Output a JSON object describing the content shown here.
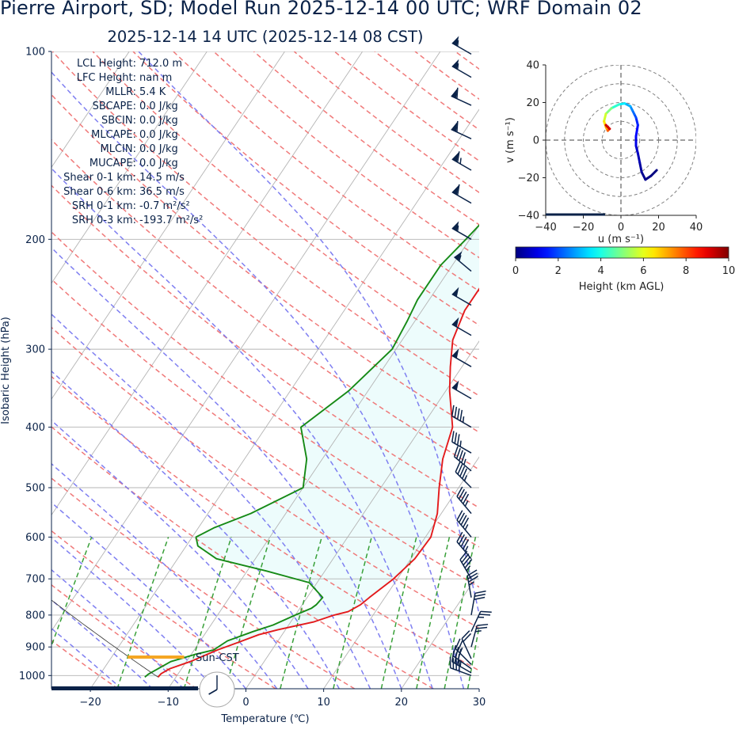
{
  "title": "Pierre Airport, SD; Model Run 2025-12-14 00 UTC; WRF Domain 02",
  "subtitle": "2025-12-14 14 UTC  (2025-12-14 08 CST)",
  "stats": [
    {
      "label": "LCL Height:",
      "value": "712.0 m"
    },
    {
      "label": "LFC Height:",
      "value": "nan m"
    },
    {
      "label": "MLLR:",
      "value": "5.4 K"
    },
    {
      "label": "SBCAPE:",
      "value": "0.0 J/kg"
    },
    {
      "label": "SBCIN:",
      "value": "0.0 J/kg"
    },
    {
      "label": "MLCAPE:",
      "value": "0.0 J/kg"
    },
    {
      "label": "MLCIN:",
      "value": "0.0 J/kg"
    },
    {
      "label": "MUCAPE:",
      "value": "0.0 J/kg"
    },
    {
      "label": "Shear 0-1 km:",
      "value": "14.5 m/s"
    },
    {
      "label": "Shear 0-6 km:",
      "value": "36.5 m/s"
    },
    {
      "label": "SRH 0-1 km:",
      "value": "-0.7 m²/s²"
    },
    {
      "label": "SRH 0-3 km:",
      "value": "-193.7 m²/s²"
    }
  ],
  "annotation": "Sun-CST",
  "chart_data": [
    {
      "type": "line",
      "name": "skewt",
      "xlabel": "Temperature (℃)",
      "ylabel": "Isobaric Height (hPa)",
      "xlim": [
        -25,
        30
      ],
      "ylim": [
        1050,
        100
      ],
      "y_scale": "log",
      "xticks": [
        -20,
        -10,
        0,
        10,
        20,
        30
      ],
      "xtick_labels": [
        "−20",
        "−10",
        "0",
        "10",
        "20",
        "30"
      ],
      "yticks": [
        100,
        200,
        300,
        400,
        500,
        600,
        700,
        800,
        900,
        1000
      ],
      "grid": true,
      "colors": {
        "temperature": "#e31a1c",
        "dewpoint": "#168a16",
        "dry_adiabat": "#ef7272",
        "moist_adiabat": "#7878f0",
        "mixing_ratio": "#2e9b2e",
        "isotherm": "#b4b4b4",
        "fill": "#edfcfc"
      },
      "series": [
        {
          "key": "temperature",
          "p": [
            1006,
            993,
            975,
            950,
            910,
            885,
            860,
            845,
            820,
            800,
            790,
            770,
            750,
            700,
            650,
            600,
            550,
            500,
            450,
            400,
            350,
            320,
            290,
            260,
            230,
            215,
            200,
            190,
            180,
            160,
            145,
            130,
            118,
            100
          ],
          "t": [
            -12.3,
            -12.2,
            -11.5,
            -9.5,
            -7,
            -5,
            -3,
            -1,
            3,
            5,
            6.5,
            7.5,
            8,
            9.5,
            10.5,
            10.7,
            9.5,
            7.5,
            5.5,
            4,
            0.5,
            -1.5,
            -3.5,
            -4.5,
            -4.5,
            -3.5,
            -2.5,
            -1.5,
            0.5,
            3.5,
            7,
            10,
            12.5,
            14
          ]
        },
        {
          "key": "dewpoint",
          "p": [
            1006,
            995,
            975,
            950,
            925,
            910,
            880,
            850,
            830,
            800,
            780,
            770,
            750,
            710,
            680,
            650,
            620,
            600,
            580,
            550,
            500,
            450,
            400,
            350,
            300,
            270,
            250,
            220,
            200,
            180,
            150,
            130,
            115,
            100
          ],
          "t": [
            -14,
            -13.8,
            -13,
            -12,
            -9.5,
            -7.5,
            -6.5,
            -4,
            -2,
            0,
            1.5,
            1.8,
            2,
            -1,
            -7.5,
            -15,
            -18.5,
            -19.5,
            -18,
            -14.5,
            -10,
            -12,
            -15.5,
            -12.5,
            -10.5,
            -11,
            -11.5,
            -11.5,
            -10.5,
            -9.5,
            -7.5,
            -5.5,
            -3.5,
            -2
          ]
        }
      ],
      "surface_marker": {
        "p": 995,
        "t_min": -15,
        "t_max": -11,
        "color": "#f5a623"
      }
    },
    {
      "type": "line",
      "name": "hodograph",
      "xlabel": "u (m s⁻¹)",
      "ylabel": "v (m s⁻¹)",
      "xlim": [
        -40,
        40
      ],
      "ylim": [
        -40,
        40
      ],
      "xticks": [
        -40,
        -20,
        0,
        20,
        40
      ],
      "yticks": [
        -40,
        -20,
        0,
        20,
        40
      ],
      "xtick_labels": [
        "−40",
        "−20",
        "0",
        "20",
        "40"
      ],
      "ytick_labels": [
        "−40",
        "−20",
        "0",
        "20",
        "40"
      ],
      "rings": [
        10,
        20,
        30,
        40
      ],
      "u": [
        19,
        16,
        13,
        11,
        10,
        9,
        8,
        8,
        9,
        8,
        7,
        6,
        5,
        2,
        -1,
        -5,
        -8,
        -9,
        -8,
        -7,
        -6,
        -8,
        -6
      ],
      "v": [
        -16,
        -19,
        -21,
        -17,
        -12,
        -7,
        -3,
        2,
        8,
        12,
        14,
        16,
        18,
        19.5,
        19,
        17,
        14,
        10,
        7,
        5,
        6,
        8,
        6
      ],
      "height_km": [
        0.0,
        0.05,
        0.15,
        0.3,
        0.5,
        0.7,
        1.0,
        1.3,
        1.6,
        2.0,
        2.3,
        2.6,
        3.0,
        3.6,
        4.2,
        5.0,
        5.8,
        6.5,
        7.2,
        7.9,
        8.6,
        9.2,
        9.8
      ],
      "colorbar": {
        "label": "Height (km AGL)",
        "min": 0,
        "max": 10,
        "ticks": [
          0,
          2,
          4,
          6,
          8,
          10
        ],
        "colormap": "jet"
      }
    }
  ],
  "wind_barbs": [
    {
      "p": 1000,
      "dir": 290,
      "speed": 40
    },
    {
      "p": 990,
      "dir": 300,
      "speed": 35
    },
    {
      "p": 975,
      "dir": 305,
      "speed": 30
    },
    {
      "p": 960,
      "dir": 315,
      "speed": 25
    },
    {
      "p": 940,
      "dir": 335,
      "speed": 20
    },
    {
      "p": 900,
      "dir": 15,
      "speed": 25
    },
    {
      "p": 850,
      "dir": 25,
      "speed": 25
    },
    {
      "p": 800,
      "dir": 10,
      "speed": 30
    },
    {
      "p": 750,
      "dir": 350,
      "speed": 35
    },
    {
      "p": 700,
      "dir": 330,
      "speed": 45
    },
    {
      "p": 650,
      "dir": 320,
      "speed": 45
    },
    {
      "p": 600,
      "dir": 320,
      "speed": 45
    },
    {
      "p": 550,
      "dir": 320,
      "speed": 45
    },
    {
      "p": 500,
      "dir": 315,
      "speed": 45
    },
    {
      "p": 470,
      "dir": 310,
      "speed": 45
    },
    {
      "p": 440,
      "dir": 300,
      "speed": 35
    },
    {
      "p": 400,
      "dir": 300,
      "speed": 45
    },
    {
      "p": 360,
      "dir": 300,
      "speed": 50
    },
    {
      "p": 320,
      "dir": 300,
      "speed": 50
    },
    {
      "p": 285,
      "dir": 300,
      "speed": 50
    },
    {
      "p": 255,
      "dir": 300,
      "speed": 50
    },
    {
      "p": 225,
      "dir": 310,
      "speed": 55
    },
    {
      "p": 200,
      "dir": 300,
      "speed": 55
    },
    {
      "p": 175,
      "dir": 300,
      "speed": 60
    },
    {
      "p": 155,
      "dir": 300,
      "speed": 65
    },
    {
      "p": 138,
      "dir": 295,
      "speed": 60
    },
    {
      "p": 122,
      "dir": 295,
      "speed": 60
    },
    {
      "p": 110,
      "dir": 300,
      "speed": 55
    },
    {
      "p": 101,
      "dir": 300,
      "speed": 55
    }
  ],
  "clock": {
    "hour": 8,
    "minute": 0
  }
}
